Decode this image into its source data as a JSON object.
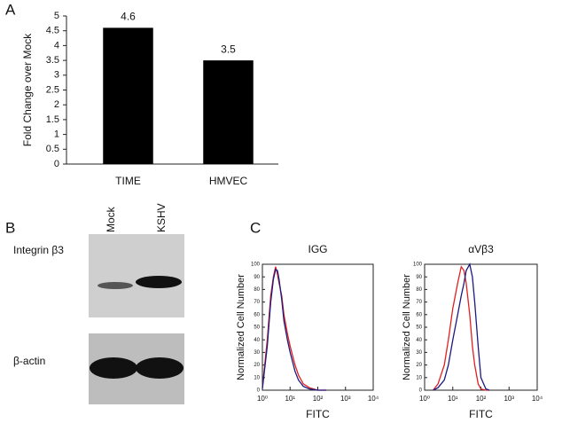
{
  "panel_labels": [
    "A",
    "B",
    "C"
  ],
  "blot": {
    "lanes": [
      "Mock",
      "KSHV"
    ],
    "bands": [
      "Integrin β3",
      "β-actin"
    ]
  },
  "chart_data": [
    {
      "type": "bar",
      "ylabel": "Fold Change over Mock",
      "categories": [
        "TIME",
        "HMVEC"
      ],
      "values": [
        4.6,
        3.5
      ],
      "color": "#000000",
      "ylim": [
        0,
        5
      ],
      "yticks": [
        0,
        0.5,
        1,
        1.5,
        2,
        2.5,
        3,
        3.5,
        4,
        4.5,
        5
      ]
    },
    {
      "type": "line",
      "title": "IGG",
      "xlabel": "FITC",
      "ylabel": "Normalized Cell Number",
      "xscale": "log",
      "xlim": [
        1,
        10000
      ],
      "xticks": [
        {
          "value": 1,
          "label": "10⁰"
        },
        {
          "value": 10,
          "label": "10¹"
        },
        {
          "value": 100,
          "label": "10²"
        },
        {
          "value": 1000,
          "label": "10³"
        },
        {
          "value": 10000,
          "label": "10⁴"
        }
      ],
      "ylim": [
        0,
        100
      ],
      "yticks": [
        0,
        10,
        20,
        30,
        40,
        50,
        60,
        70,
        80,
        90,
        100
      ],
      "x": [
        1,
        1.5,
        2,
        2.5,
        3,
        3.5,
        4,
        5,
        6,
        8,
        10,
        15,
        20,
        30,
        50,
        100,
        200
      ],
      "series": [
        {
          "color": "#e02020",
          "values": [
            2,
            40,
            75,
            90,
            98,
            92,
            85,
            75,
            60,
            45,
            35,
            20,
            12,
            5,
            2,
            0,
            0
          ]
        },
        {
          "color": "#1a1a80",
          "values": [
            1,
            35,
            70,
            88,
            96,
            95,
            88,
            72,
            55,
            40,
            30,
            15,
            8,
            3,
            1,
            0,
            0
          ]
        }
      ]
    },
    {
      "type": "line",
      "title": "αVβ3",
      "xlabel": "FITC",
      "ylabel": "Normalized Cell Number",
      "xscale": "log",
      "xlim": [
        1,
        10000
      ],
      "xticks": [
        {
          "value": 1,
          "label": "10⁰"
        },
        {
          "value": 10,
          "label": "10¹"
        },
        {
          "value": 100,
          "label": "10²"
        },
        {
          "value": 1000,
          "label": "10³"
        },
        {
          "value": 10000,
          "label": "10⁴"
        }
      ],
      "ylim": [
        0,
        100
      ],
      "yticks": [
        0,
        10,
        20,
        30,
        40,
        50,
        60,
        70,
        80,
        90,
        100
      ],
      "x": [
        2,
        3,
        5,
        7,
        10,
        15,
        20,
        25,
        30,
        40,
        50,
        60,
        80,
        100,
        150,
        200
      ],
      "series": [
        {
          "color": "#e02020",
          "values": [
            0,
            5,
            20,
            40,
            65,
            85,
            98,
            95,
            85,
            60,
            35,
            20,
            5,
            1,
            0,
            0
          ]
        },
        {
          "color": "#1a1a80",
          "values": [
            0,
            2,
            8,
            20,
            40,
            60,
            75,
            85,
            95,
            100,
            90,
            70,
            35,
            10,
            1,
            0
          ]
        }
      ]
    }
  ]
}
